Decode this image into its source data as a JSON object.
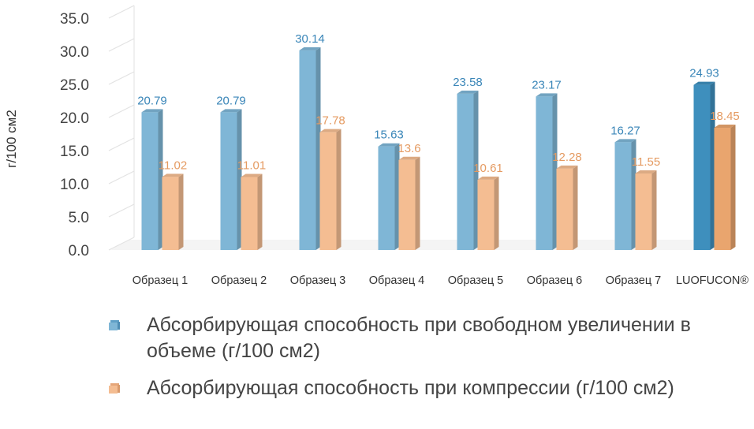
{
  "chart_data": {
    "type": "bar",
    "title": "",
    "xlabel": "",
    "ylabel": "г/100 см2",
    "ylim": [
      0,
      35
    ],
    "yticks": [
      "0.0",
      "5.0",
      "10.0",
      "15.0",
      "20.0",
      "25.0",
      "30.0",
      "35.0"
    ],
    "categories": [
      "Образец 1",
      "Образец 2",
      "Образец 3",
      "Образец 4",
      "Образец 5",
      "Образец 6",
      "Образец 7",
      "LUOFUCON®"
    ],
    "series": [
      {
        "name": "Абсорбирующая способность при свободном увеличении в объеме (г/100 см2)",
        "values": [
          20.79,
          20.79,
          30.14,
          15.63,
          23.58,
          23.17,
          16.27,
          24.93
        ],
        "labels": [
          "20.79",
          "20.79",
          "30.14",
          "15.63",
          "23.58",
          "23.17",
          "16.27",
          "24.93"
        ],
        "color": "#7fb6d6",
        "highlight_color": "#3e8fbd"
      },
      {
        "name": "Абсорбирующая способность при компрессии (г/100 см2)",
        "values": [
          11.02,
          11.01,
          17.78,
          13.6,
          10.61,
          12.28,
          11.55,
          18.45
        ],
        "labels": [
          "11.02",
          "11.01",
          "17.78",
          "13.6",
          "10.61",
          "12.28",
          "11.55",
          "18.45"
        ],
        "color": "#f4bd92",
        "highlight_color": "#e9a56e"
      }
    ],
    "highlight_category": "LUOFUCON®",
    "category_label_colors": {
      "default": "#333333",
      "highlight": "#2a7ab5"
    },
    "grid": false,
    "legend_position": "bottom"
  }
}
